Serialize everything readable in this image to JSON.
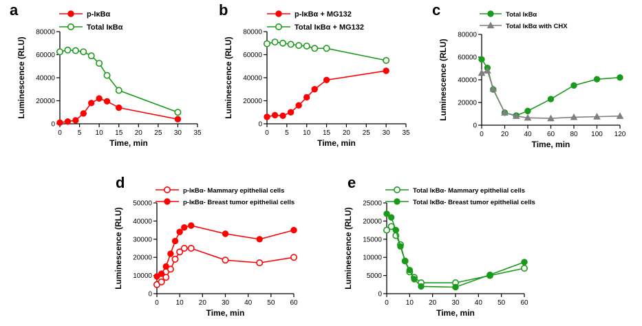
{
  "colors": {
    "red": "#ff0000",
    "green": "#1a9a1a",
    "gray": "#7f7f7f",
    "black": "#000000"
  },
  "chart_data": [
    {
      "id": "a",
      "type": "line",
      "panel_label": "a",
      "xlabel": "Time, min",
      "ylabel": "Luminescence (RLU)",
      "xlim": [
        0,
        35
      ],
      "ylim": [
        0,
        80000
      ],
      "xticks": [
        0,
        5,
        10,
        15,
        20,
        25,
        30,
        35
      ],
      "yticks": [
        0,
        20000,
        40000,
        60000,
        80000
      ],
      "legend_placement": "top-left",
      "series": [
        {
          "name": "p-IκBα",
          "color": "#ff0000",
          "marker": "filled-circle",
          "x": [
            0,
            2,
            4,
            6,
            8,
            10,
            12,
            15,
            30
          ],
          "y": [
            1000,
            2000,
            3000,
            9000,
            18000,
            22000,
            19500,
            14000,
            4000
          ]
        },
        {
          "name": "Total IκBα",
          "color": "#1a9a1a",
          "marker": "open-circle",
          "x": [
            0,
            2,
            4,
            6,
            8,
            10,
            12,
            15,
            30
          ],
          "y": [
            62500,
            64000,
            63500,
            62500,
            59000,
            52500,
            42000,
            29000,
            10000
          ]
        }
      ]
    },
    {
      "id": "b",
      "type": "line",
      "panel_label": "b",
      "xlabel": "Time, min",
      "ylabel": "Luminescence (RLU)",
      "xlim": [
        0,
        35
      ],
      "ylim": [
        0,
        80000
      ],
      "xticks": [
        0,
        5,
        10,
        15,
        20,
        25,
        30,
        35
      ],
      "yticks": [
        0,
        20000,
        40000,
        60000,
        80000
      ],
      "legend_placement": "top-left",
      "series": [
        {
          "name": "p-IκBα + MG132",
          "color": "#ff0000",
          "marker": "filled-circle",
          "x": [
            0,
            2,
            4,
            6,
            8,
            10,
            12,
            15,
            30
          ],
          "y": [
            6000,
            7500,
            7000,
            10000,
            16000,
            23000,
            30000,
            38000,
            46000
          ]
        },
        {
          "name": "Total IκBα + MG132",
          "color": "#1a9a1a",
          "marker": "open-circle",
          "x": [
            0,
            2,
            4,
            6,
            8,
            10,
            12,
            15,
            30
          ],
          "y": [
            69500,
            71000,
            70000,
            69000,
            68000,
            67500,
            65500,
            65500,
            55000
          ]
        }
      ]
    },
    {
      "id": "c",
      "type": "line",
      "panel_label": "c",
      "xlabel": "Time, min",
      "ylabel": "Luminescence (RLU)",
      "xlim": [
        0,
        120
      ],
      "ylim": [
        0,
        80000
      ],
      "xticks": [
        0,
        20,
        40,
        60,
        80,
        100,
        120
      ],
      "yticks": [
        0,
        20000,
        40000,
        60000,
        80000
      ],
      "legend_placement": "top-left",
      "series": [
        {
          "name": "Total IκBα",
          "color": "#1a9a1a",
          "marker": "filled-circle",
          "x": [
            0,
            5,
            10,
            20,
            30,
            40,
            60,
            80,
            100,
            120
          ],
          "y": [
            58000,
            50500,
            31500,
            11000,
            8500,
            12500,
            23000,
            35000,
            40500,
            42000
          ]
        },
        {
          "name": "Total IκBα with CHX",
          "color": "#7f7f7f",
          "marker": "filled-triangle",
          "x": [
            0,
            5,
            10,
            20,
            30,
            40,
            60,
            80,
            100,
            120
          ],
          "y": [
            46000,
            48000,
            32000,
            11000,
            8000,
            6500,
            6000,
            7000,
            7500,
            8000
          ]
        }
      ]
    },
    {
      "id": "d",
      "type": "line",
      "panel_label": "d",
      "xlabel": "Time, min",
      "ylabel": "Luminescence (RLU)",
      "xlim": [
        0,
        60
      ],
      "ylim": [
        0,
        50000
      ],
      "xticks": [
        0,
        10,
        20,
        30,
        40,
        50,
        60
      ],
      "yticks": [
        0,
        10000,
        20000,
        30000,
        40000,
        50000
      ],
      "legend_placement": "top-left",
      "series": [
        {
          "name": "p-IκBα- Mammary epithelial cells",
          "color": "#ff0000",
          "marker": "open-circle",
          "x": [
            0,
            2,
            4,
            6,
            8,
            10,
            12,
            15,
            30,
            45,
            60
          ],
          "y": [
            5000,
            6500,
            9000,
            13500,
            19000,
            23000,
            25000,
            25000,
            18500,
            17000,
            20000
          ]
        },
        {
          "name": "p-IκBα- Breast tumor epithelial cells",
          "color": "#ff0000",
          "marker": "filled-circle",
          "x": [
            0,
            2,
            4,
            6,
            8,
            10,
            12,
            15,
            30,
            45,
            60
          ],
          "y": [
            9500,
            11000,
            15000,
            22000,
            29000,
            34000,
            36500,
            37500,
            33000,
            30000,
            35000
          ]
        }
      ]
    },
    {
      "id": "e",
      "type": "line",
      "panel_label": "e",
      "xlabel": "Time, min",
      "ylabel": "Luminescence (RLU)",
      "xlim": [
        0,
        60
      ],
      "ylim": [
        0,
        25000
      ],
      "xticks": [
        0,
        10,
        20,
        30,
        40,
        50,
        60
      ],
      "yticks": [
        0,
        5000,
        10000,
        15000,
        20000,
        25000
      ],
      "legend_placement": "top-left",
      "series": [
        {
          "name": "Total IκBα- Mammary epithelial cells",
          "color": "#1a9a1a",
          "marker": "open-circle",
          "x": [
            0,
            2,
            4,
            6,
            8,
            10,
            12,
            15,
            30,
            45,
            60
          ],
          "y": [
            17500,
            18500,
            16000,
            13500,
            9000,
            6000,
            4500,
            3000,
            3000,
            5000,
            7000
          ]
        },
        {
          "name": "Total IκBα- Breast tumor epithelial cells",
          "color": "#1a9a1a",
          "marker": "filled-circle",
          "x": [
            0,
            2,
            4,
            6,
            8,
            10,
            12,
            15,
            30,
            45,
            60
          ],
          "y": [
            22000,
            21000,
            17500,
            13000,
            9000,
            6500,
            4000,
            2000,
            1800,
            5200,
            8700
          ]
        }
      ]
    }
  ]
}
